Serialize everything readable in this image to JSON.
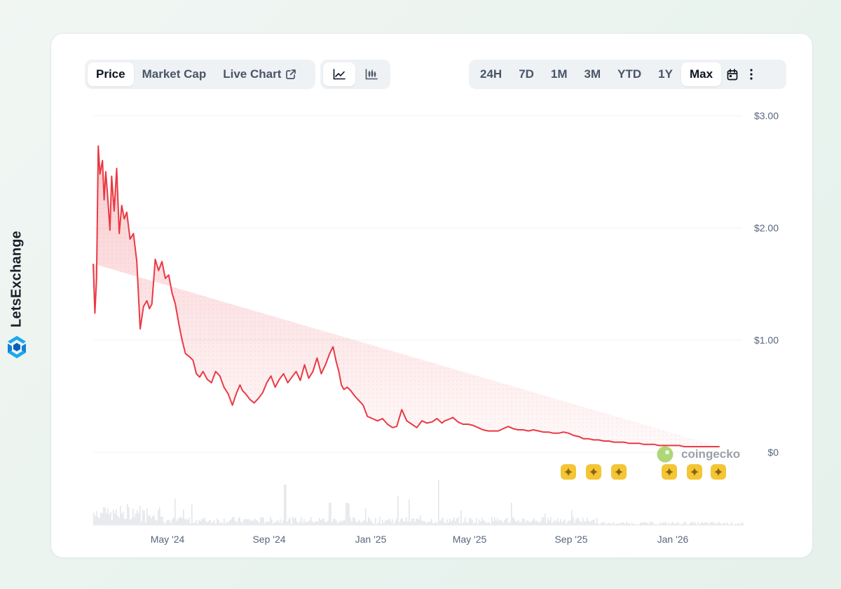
{
  "brand": {
    "name": "LetsExchange"
  },
  "toolbar": {
    "data_tabs": [
      {
        "label": "Price",
        "active": true
      },
      {
        "label": "Market Cap",
        "active": false
      },
      {
        "label": "Live Chart",
        "active": false,
        "icon": "external-link-icon"
      }
    ],
    "chart_types": [
      {
        "icon": "line-chart-icon",
        "active": true
      },
      {
        "icon": "candlestick-chart-icon",
        "active": false
      }
    ],
    "ranges": [
      {
        "label": "24H",
        "active": false
      },
      {
        "label": "7D",
        "active": false
      },
      {
        "label": "1M",
        "active": false
      },
      {
        "label": "3M",
        "active": false
      },
      {
        "label": "YTD",
        "active": false
      },
      {
        "label": "1Y",
        "active": false
      },
      {
        "label": "Max",
        "active": true
      }
    ],
    "extra_icons": [
      "calendar-icon",
      "more-vertical-icon"
    ]
  },
  "watermark": {
    "text": "coingecko"
  },
  "colors": {
    "line": "#ea3943",
    "accent": "#f4c535",
    "grid": "#eef0f3"
  },
  "chart_data": {
    "type": "line",
    "title": "",
    "xlabel": "",
    "ylabel": "",
    "y_ticks": [
      "$3.00",
      "$2.00",
      "$1.00",
      "$0"
    ],
    "x_ticks": [
      "May '24",
      "Sep '24",
      "Jan '25",
      "May '25",
      "Sep '25",
      "Jan '26"
    ],
    "ylim": [
      0,
      3
    ],
    "x_range": [
      "2024-02-10",
      "2026-03-25"
    ],
    "grid": true,
    "series": [
      {
        "values_x": [
          "2024-02-10",
          "2024-02-12",
          "2024-02-14",
          "2024-02-16",
          "2024-02-18",
          "2024-02-21",
          "2024-02-23",
          "2024-02-25",
          "2024-02-27",
          "2024-03-01",
          "2024-03-03",
          "2024-03-06",
          "2024-03-09",
          "2024-03-12",
          "2024-03-15",
          "2024-03-18",
          "2024-03-21",
          "2024-03-25",
          "2024-03-29",
          "2024-04-02",
          "2024-04-06",
          "2024-04-10",
          "2024-04-14",
          "2024-04-17",
          "2024-04-20",
          "2024-04-24",
          "2024-04-28",
          "2024-05-02",
          "2024-05-06",
          "2024-05-10",
          "2024-05-14",
          "2024-05-18",
          "2024-05-22",
          "2024-05-26",
          "2024-05-30",
          "2024-06-04",
          "2024-06-08",
          "2024-06-12",
          "2024-06-16",
          "2024-06-20",
          "2024-06-25",
          "2024-06-30",
          "2024-07-05",
          "2024-07-10",
          "2024-07-15",
          "2024-07-20",
          "2024-07-25",
          "2024-07-30",
          "2024-08-03",
          "2024-08-06",
          "2024-08-10",
          "2024-08-15",
          "2024-08-20",
          "2024-08-25",
          "2024-08-30",
          "2024-09-04",
          "2024-09-09",
          "2024-09-14",
          "2024-09-19",
          "2024-09-24",
          "2024-09-29",
          "2024-10-04",
          "2024-10-09",
          "2024-10-14",
          "2024-10-19",
          "2024-10-24",
          "2024-10-29",
          "2024-11-03",
          "2024-11-08",
          "2024-11-13",
          "2024-11-18",
          "2024-11-22",
          "2024-11-26",
          "2024-11-29",
          "2024-12-02",
          "2024-12-05",
          "2024-12-09",
          "2024-12-13",
          "2024-12-18",
          "2024-12-23",
          "2024-12-28",
          "2025-01-02",
          "2025-01-08",
          "2025-01-14",
          "2025-01-20",
          "2025-01-26",
          "2025-02-01",
          "2025-02-06",
          "2025-02-12",
          "2025-02-18",
          "2025-02-24",
          "2025-03-02",
          "2025-03-08",
          "2025-03-14",
          "2025-03-20",
          "2025-03-26",
          "2025-04-01",
          "2025-04-04",
          "2025-04-08",
          "2025-04-14",
          "2025-04-20",
          "2025-04-26",
          "2025-05-02",
          "2025-05-08",
          "2025-05-14",
          "2025-05-20",
          "2025-05-26",
          "2025-06-01",
          "2025-06-07",
          "2025-06-13",
          "2025-06-19",
          "2025-06-25",
          "2025-07-01",
          "2025-07-07",
          "2025-07-13",
          "2025-07-19",
          "2025-07-25",
          "2025-07-31",
          "2025-08-06",
          "2025-08-12",
          "2025-08-18",
          "2025-08-24",
          "2025-08-30",
          "2025-09-05",
          "2025-09-11",
          "2025-09-17",
          "2025-09-23",
          "2025-09-29",
          "2025-10-05",
          "2025-10-11",
          "2025-10-17",
          "2025-10-23",
          "2025-10-29",
          "2025-11-04",
          "2025-11-10",
          "2025-11-16",
          "2025-11-22",
          "2025-11-28",
          "2025-12-04",
          "2025-12-10",
          "2025-12-16",
          "2025-12-22",
          "2025-12-28",
          "2026-01-03",
          "2026-01-09",
          "2026-01-15",
          "2026-01-21",
          "2026-01-27",
          "2026-02-02",
          "2026-02-08",
          "2026-02-14",
          "2026-02-20",
          "2026-02-26",
          "2026-03-04",
          "2026-03-10",
          "2026-03-16",
          "2026-03-22",
          "2026-03-25"
        ],
        "values_y": [
          1.68,
          1.24,
          1.55,
          2.73,
          2.48,
          2.6,
          2.25,
          2.5,
          2.31,
          1.98,
          2.46,
          2.15,
          2.53,
          1.95,
          2.2,
          2.08,
          2.14,
          1.9,
          1.95,
          1.7,
          1.1,
          1.3,
          1.35,
          1.28,
          1.32,
          1.72,
          1.62,
          1.7,
          1.55,
          1.58,
          1.42,
          1.32,
          1.15,
          1.0,
          0.88,
          0.85,
          0.82,
          0.7,
          0.67,
          0.72,
          0.65,
          0.62,
          0.72,
          0.68,
          0.58,
          0.52,
          0.42,
          0.53,
          0.6,
          0.55,
          0.52,
          0.47,
          0.44,
          0.48,
          0.53,
          0.62,
          0.68,
          0.58,
          0.65,
          0.7,
          0.62,
          0.67,
          0.72,
          0.64,
          0.78,
          0.66,
          0.72,
          0.84,
          0.7,
          0.78,
          0.88,
          0.94,
          0.8,
          0.72,
          0.6,
          0.56,
          0.58,
          0.55,
          0.5,
          0.46,
          0.42,
          0.32,
          0.3,
          0.28,
          0.3,
          0.25,
          0.22,
          0.23,
          0.38,
          0.28,
          0.25,
          0.22,
          0.28,
          0.26,
          0.27,
          0.3,
          0.26,
          0.28,
          0.29,
          0.31,
          0.27,
          0.25,
          0.25,
          0.24,
          0.22,
          0.2,
          0.19,
          0.19,
          0.19,
          0.21,
          0.23,
          0.21,
          0.2,
          0.2,
          0.19,
          0.2,
          0.19,
          0.18,
          0.18,
          0.17,
          0.17,
          0.18,
          0.17,
          0.15,
          0.14,
          0.12,
          0.12,
          0.11,
          0.11,
          0.1,
          0.1,
          0.09,
          0.09,
          0.09,
          0.08,
          0.08,
          0.08,
          0.07,
          0.07,
          0.07,
          0.06,
          0.06,
          0.06,
          0.06,
          0.06,
          0.05,
          0.05,
          0.05,
          0.05,
          0.05,
          0.05,
          0.05,
          0.05
        ]
      }
    ]
  }
}
